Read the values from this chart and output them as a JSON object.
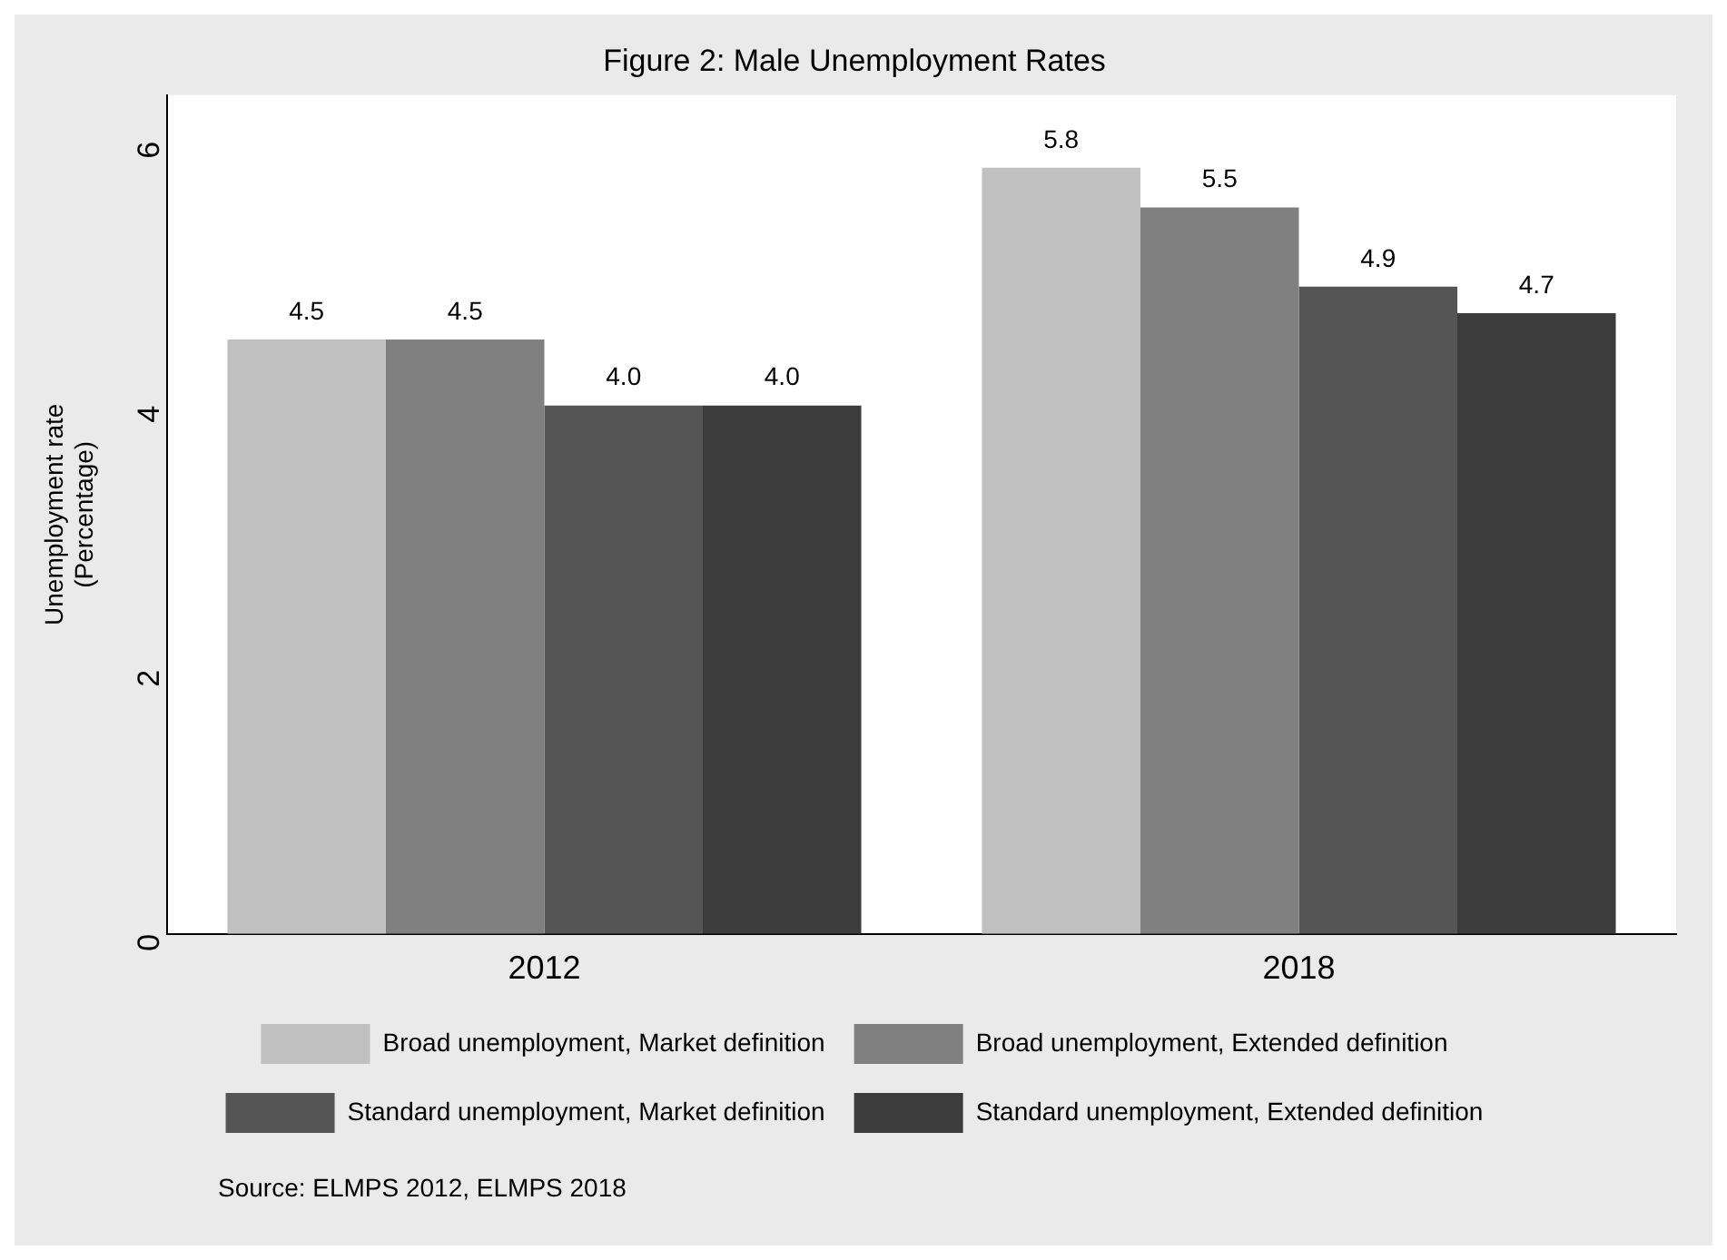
{
  "chart_data": {
    "type": "bar",
    "title": "Figure 2: Male Unemployment Rates",
    "ylabel": "Unemployment rate\n(Percentage)",
    "categories": [
      "2012",
      "2018"
    ],
    "series": [
      {
        "name": "Broad unemployment, Market definition",
        "color": "#c0c0c0",
        "values": [
          4.5,
          5.8
        ],
        "value_labels": [
          "4.5",
          "5.8"
        ]
      },
      {
        "name": "Broad unemployment, Extended definition",
        "color": "#808080",
        "values": [
          4.5,
          5.5
        ],
        "value_labels": [
          "4.5",
          "5.5"
        ]
      },
      {
        "name": "Standard unemployment, Market definition",
        "color": "#555555",
        "values": [
          4.0,
          4.9
        ],
        "value_labels": [
          "4.0",
          "4.9"
        ]
      },
      {
        "name": "Standard unemployment, Extended definition",
        "color": "#3c3c3c",
        "values": [
          4.0,
          4.7
        ],
        "value_labels": [
          "4.0",
          "4.7"
        ]
      }
    ],
    "ylim": [
      0,
      6.35
    ],
    "data_labels": true,
    "yticks": [
      0,
      2,
      4,
      6
    ],
    "grid": false,
    "legend": "bottom",
    "annotations": [
      "Source: ELMPS 2012, ELMPS 2018"
    ]
  }
}
